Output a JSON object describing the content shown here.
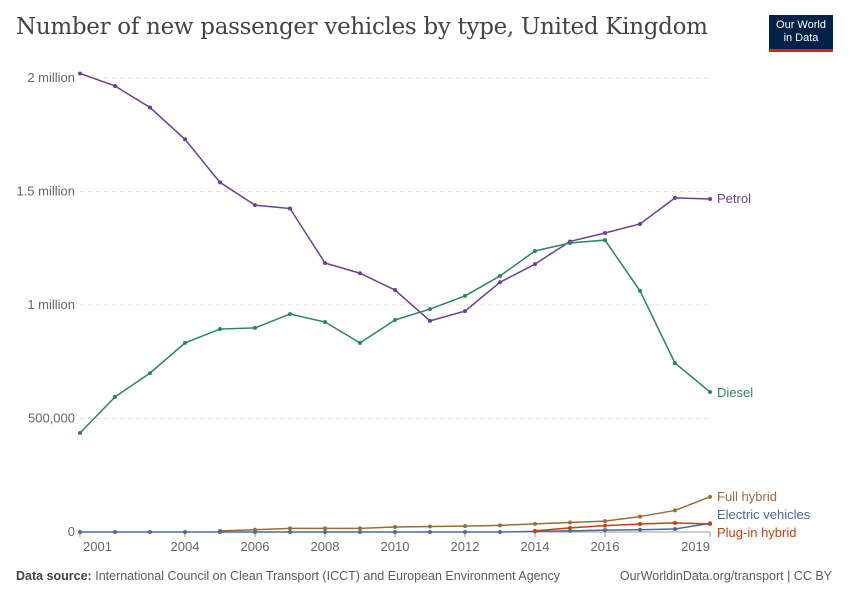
{
  "header": {
    "title": "Number of new passenger vehicles by type, United Kingdom",
    "logo_line1": "Our World",
    "logo_line2": "in Data"
  },
  "footer": {
    "source_label": "Data source:",
    "source_text": "International Council on Clean Transport (ICCT) and European Environment Agency",
    "link": "OurWorldinData.org/transport | CC BY"
  },
  "chart_data": {
    "type": "line",
    "title": "Number of new passenger vehicles by type, United Kingdom",
    "x": [
      2001,
      2002,
      2003,
      2004,
      2005,
      2006,
      2007,
      2008,
      2009,
      2010,
      2011,
      2012,
      2013,
      2014,
      2015,
      2016,
      2017,
      2018,
      2019
    ],
    "xticks": [
      2001,
      2004,
      2006,
      2008,
      2010,
      2012,
      2014,
      2016,
      2019
    ],
    "yticks": [
      {
        "v": 0,
        "label": "0"
      },
      {
        "v": 500000,
        "label": "500,000"
      },
      {
        "v": 1000000,
        "label": "1 million"
      },
      {
        "v": 1500000,
        "label": "1.5 million"
      },
      {
        "v": 2000000,
        "label": "2 million"
      }
    ],
    "xlim": [
      2001,
      2019
    ],
    "ylim": [
      0,
      2000000
    ],
    "grid": "horizontal dashed",
    "legend": "inline labels at right",
    "series": [
      {
        "name": "Petrol",
        "color": "#6d3e91",
        "values": [
          2020000,
          1965000,
          1870000,
          1730000,
          1540000,
          1440000,
          1425000,
          1185000,
          1140000,
          1066000,
          930000,
          973000,
          1100000,
          1180000,
          1280000,
          1317000,
          1357000,
          1472000,
          1467000
        ]
      },
      {
        "name": "Diesel",
        "color": "#2c8465",
        "values": [
          436000,
          595000,
          700000,
          833000,
          894000,
          899000,
          960000,
          925000,
          833000,
          934000,
          982000,
          1040000,
          1128000,
          1238000,
          1273000,
          1286000,
          1062000,
          744000,
          617000
        ]
      },
      {
        "name": "Full hybrid",
        "color": "#996d39",
        "values": [
          null,
          null,
          null,
          null,
          5000,
          10000,
          16000,
          16000,
          16000,
          22000,
          24000,
          26000,
          29000,
          36000,
          42000,
          48000,
          68000,
          95000,
          155000
        ]
      },
      {
        "name": "Electric vehicles",
        "color": "#4c6a9c",
        "values": [
          0,
          0,
          0,
          0,
          0,
          0,
          0,
          0,
          0,
          0,
          0,
          0,
          0,
          3000,
          5000,
          8000,
          10000,
          13000,
          38000
        ]
      },
      {
        "name": "Plug-in hybrid",
        "color": "#c3410f",
        "values": [
          null,
          null,
          null,
          null,
          null,
          null,
          null,
          null,
          null,
          null,
          null,
          null,
          null,
          5000,
          18000,
          28000,
          35000,
          40000,
          35000
        ]
      }
    ]
  }
}
